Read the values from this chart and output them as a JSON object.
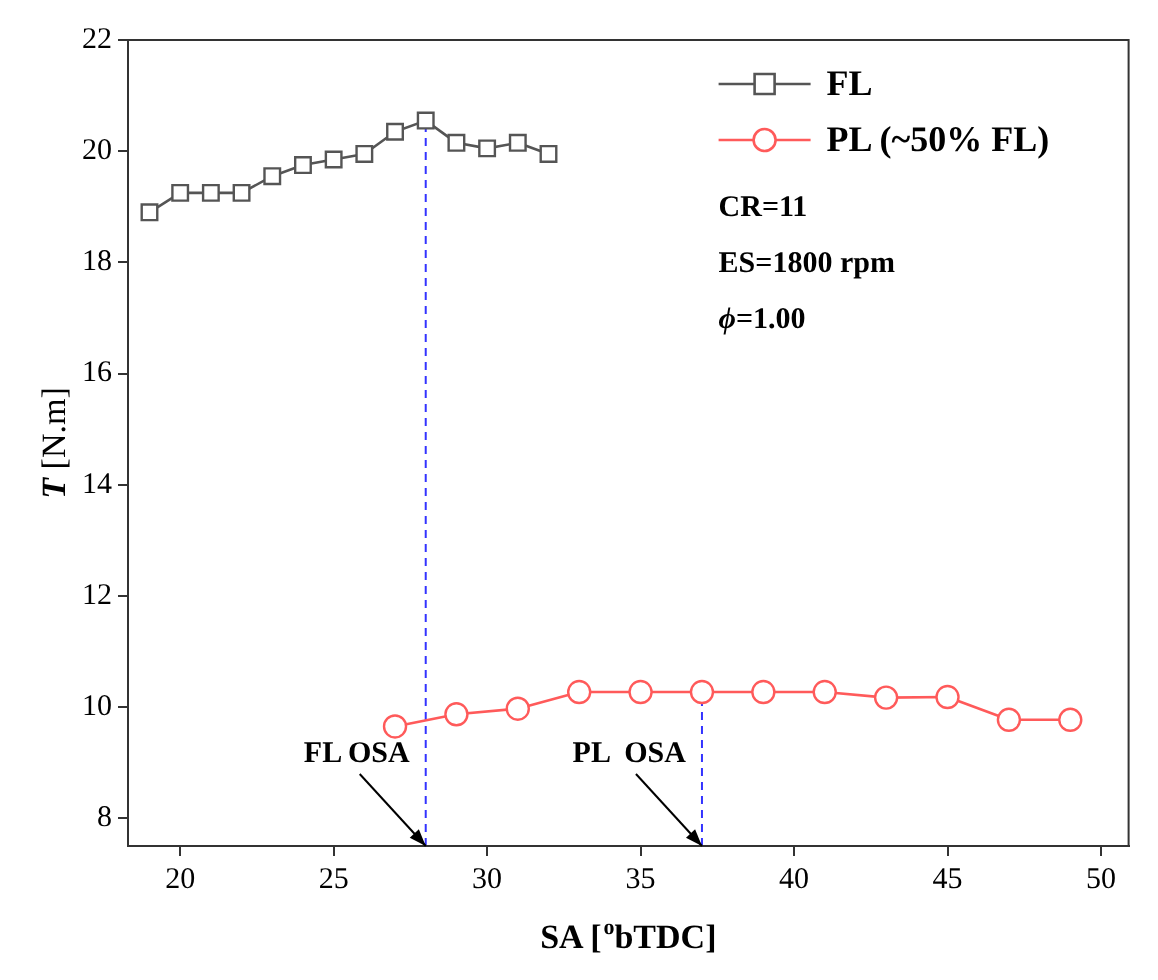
{
  "chart_data": {
    "type": "line",
    "xlabel": "SA [$^{o}$bTDC]",
    "ylabel": "T [N.m]",
    "xlim": [
      18.3,
      50.9
    ],
    "xticks": [
      20,
      25,
      30,
      35,
      40,
      45,
      50
    ],
    "ylim": [
      7.5,
      22
    ],
    "yticks": [
      8,
      10,
      12,
      14,
      16,
      18,
      20,
      22
    ],
    "grid": false,
    "legend": "top right",
    "line_style": "solid",
    "series": [
      {
        "name": "FL",
        "color": "#555555",
        "marker": "square",
        "x": [
          19,
          20,
          21,
          22,
          23,
          24,
          25,
          26,
          27,
          28,
          29,
          30,
          31,
          32
        ],
        "values": [
          18.9,
          19.25,
          19.25,
          19.25,
          19.55,
          19.75,
          19.85,
          19.95,
          20.35,
          20.55,
          20.15,
          20.05,
          20.15,
          19.95
        ]
      },
      {
        "name": "PL (~50% FL)",
        "color": "#ff5a5a",
        "marker": "circle",
        "x": [
          27,
          29,
          31,
          33,
          35,
          37,
          39,
          41,
          43,
          45,
          47,
          49
        ],
        "values": [
          9.65,
          9.87,
          9.97,
          10.27,
          10.27,
          10.27,
          10.27,
          10.27,
          10.17,
          10.18,
          9.77,
          9.77
        ]
      }
    ],
    "ref_lines": [
      {
        "axis": "x",
        "value": 28,
        "color": "#3333ff",
        "line_style": "dashed"
      },
      {
        "axis": "x",
        "value": 37,
        "color": "#3333ff",
        "line_style": "dashed"
      }
    ],
    "annotations": [
      {
        "text": "FL OSA",
        "x": 28,
        "y": 7.5
      },
      {
        "text": "PL  OSA",
        "x": 37,
        "y": 7.5
      },
      "CR=11",
      "ES=1800 rpm",
      "ϕ=1.00"
    ]
  }
}
